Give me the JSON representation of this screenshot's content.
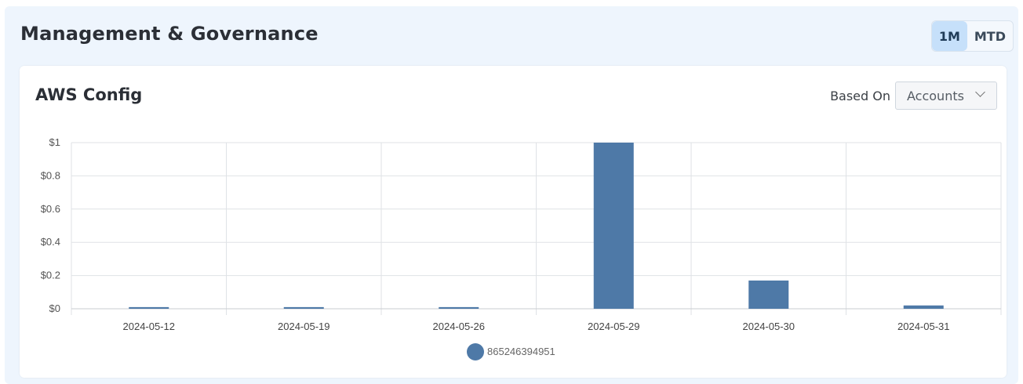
{
  "section": {
    "title": "Management & Governance",
    "toggle": [
      {
        "label": "1M",
        "active": true
      },
      {
        "label": "MTD",
        "active": false
      }
    ]
  },
  "card": {
    "title": "AWS Config",
    "based_on_label": "Based On",
    "based_on_value": "Accounts"
  },
  "chart_data": {
    "type": "bar",
    "title": "AWS Config",
    "categories": [
      "2024-05-12",
      "2024-05-19",
      "2024-05-26",
      "2024-05-29",
      "2024-05-30",
      "2024-05-31"
    ],
    "series": [
      {
        "name": "865246394951",
        "values": [
          0.01,
          0.01,
          0.01,
          1.0,
          0.17,
          0.02
        ],
        "color": "#4e79a7"
      }
    ],
    "ylim": [
      0,
      1
    ],
    "yticks": [
      {
        "value": 0,
        "label": "$0"
      },
      {
        "value": 0.2,
        "label": "$0.2"
      },
      {
        "value": 0.4,
        "label": "$0.4"
      },
      {
        "value": 0.6,
        "label": "$0.6"
      },
      {
        "value": 0.8,
        "label": "$0.8"
      },
      {
        "value": 1,
        "label": "$1"
      }
    ],
    "grid": true,
    "legend": "bottom-center"
  }
}
